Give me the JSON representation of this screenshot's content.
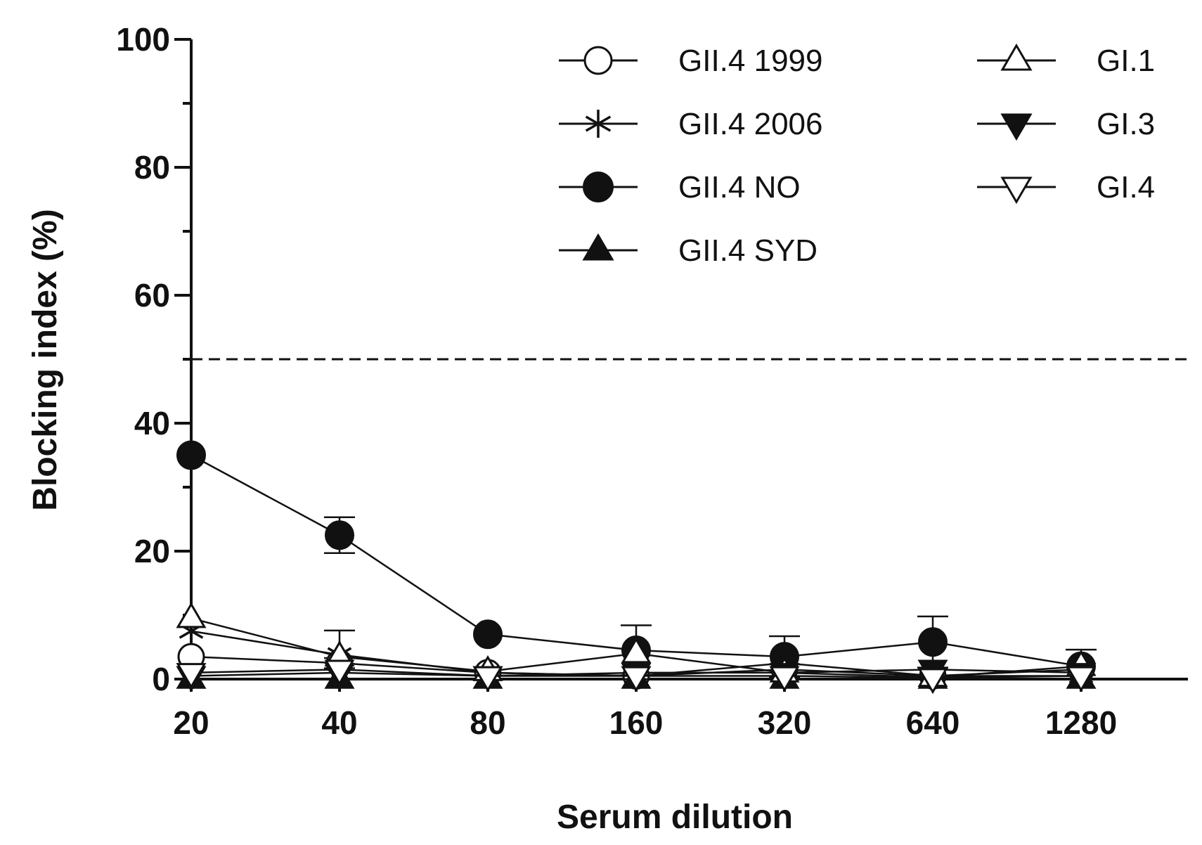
{
  "chart_data": {
    "type": "line",
    "xlabel": "Serum dilution",
    "ylabel": "Blocking index (%)",
    "categories": [
      "20",
      "40",
      "80",
      "160",
      "320",
      "640",
      "1280"
    ],
    "ylim": [
      0,
      100
    ],
    "yticks": [
      "0",
      "20",
      "40",
      "60",
      "80",
      "100"
    ],
    "reference_line": {
      "y": 50,
      "style": "dashed"
    },
    "series": [
      {
        "name": "GII.4 1999",
        "marker": "circle-open",
        "values": [
          3.5,
          2.5,
          1.0,
          0.5,
          1.5,
          0.5,
          1.5
        ],
        "error": [
          0,
          0.8,
          0,
          0,
          0,
          0,
          0
        ]
      },
      {
        "name": "GII.4 2006",
        "marker": "asterisk",
        "values": [
          7.5,
          3.8,
          1.0,
          0.5,
          2.5,
          0.5,
          0.5
        ],
        "error": [
          0,
          3.8,
          0,
          0,
          0,
          0,
          0
        ]
      },
      {
        "name": "GII.4 NO",
        "marker": "circle-filled",
        "values": [
          35,
          22.5,
          7.0,
          4.5,
          3.5,
          5.8,
          2.0
        ],
        "error": [
          0,
          2.8,
          0,
          3.9,
          3.2,
          4.0,
          2.6
        ]
      },
      {
        "name": "GII.4 SYD",
        "marker": "triangle-up-filled",
        "values": [
          0,
          0,
          0,
          0,
          0,
          0,
          0
        ],
        "error": [
          0,
          0,
          0,
          0,
          0,
          0,
          0
        ]
      },
      {
        "name": "GI.1",
        "marker": "triangle-up-open",
        "values": [
          9.5,
          3.5,
          1.2,
          4.0,
          1.0,
          0.3,
          2.0
        ],
        "error": [
          0,
          0,
          0,
          0,
          0,
          0,
          0
        ]
      },
      {
        "name": "GI.3",
        "marker": "triangle-down-filled",
        "values": [
          0.5,
          1.0,
          0.5,
          1.0,
          1.0,
          1.5,
          1.0
        ],
        "error": [
          0,
          0,
          0,
          0,
          0,
          0,
          0
        ]
      },
      {
        "name": "GI.4",
        "marker": "triangle-down-open",
        "values": [
          1.0,
          1.5,
          0.5,
          0.5,
          0.5,
          0.2,
          0.5
        ],
        "error": [
          0,
          0,
          0,
          0,
          0,
          0,
          0
        ]
      }
    ]
  }
}
